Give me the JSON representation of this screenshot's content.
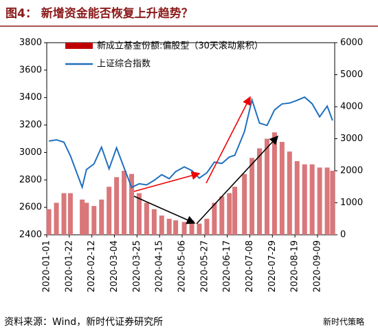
{
  "chart_data": {
    "type": "combo",
    "title": "图4：  新增资金能否恢复上升趋势？",
    "source": "资料来源：Wind，新时代证券研究所",
    "watermark": "新时代策略",
    "x": [
      "2020-01-03",
      "2020-01-10",
      "2020-01-17",
      "2020-01-23",
      "2020-02-03",
      "2020-02-07",
      "2020-02-14",
      "2020-02-21",
      "2020-02-28",
      "2020-03-06",
      "2020-03-13",
      "2020-03-20",
      "2020-03-27",
      "2020-04-03",
      "2020-04-10",
      "2020-04-17",
      "2020-04-24",
      "2020-04-30",
      "2020-05-08",
      "2020-05-15",
      "2020-05-22",
      "2020-05-29",
      "2020-06-05",
      "2020-06-12",
      "2020-06-19",
      "2020-06-24",
      "2020-07-03",
      "2020-07-10",
      "2020-07-17",
      "2020-07-24",
      "2020-07-31",
      "2020-08-07",
      "2020-08-14",
      "2020-08-21",
      "2020-08-28",
      "2020-09-04",
      "2020-09-11",
      "2020-09-18",
      "2020-09-23"
    ],
    "xlim": [
      "2020-01-01",
      "2020-09-25"
    ],
    "xticks": [
      "2020-01-01",
      "2020-01-22",
      "2020-02-12",
      "2020-03-04",
      "2020-03-25",
      "2020-04-15",
      "2020-05-06",
      "2020-05-27",
      "2020-06-17",
      "2020-07-08",
      "2020-07-29",
      "2020-08-19",
      "2020-09-09"
    ],
    "ylim": [
      2400,
      3800
    ],
    "yticks": [
      2400,
      2600,
      2800,
      3000,
      3200,
      3400,
      3600,
      3800
    ],
    "y2lim": [
      0,
      6000
    ],
    "y2ticks": [
      0,
      1000,
      2000,
      3000,
      4000,
      5000,
      6000
    ],
    "series": [
      {
        "name": "新成立基金份额:偏股型（30天滚动累积）",
        "type": "bar",
        "axis": "y2",
        "color": "#d9777a",
        "values": [
          800,
          1000,
          1300,
          1300,
          1100,
          1000,
          900,
          1100,
          1500,
          1800,
          2000,
          1900,
          1300,
          1000,
          800,
          600,
          500,
          450,
          400,
          450,
          350,
          500,
          1000,
          1200,
          1300,
          1500,
          1900,
          2400,
          2700,
          3000,
          3200,
          2900,
          2600,
          2300,
          2200,
          2200,
          2100,
          2100,
          2000
        ]
      },
      {
        "name": "上证综合指数",
        "type": "line",
        "axis": "y",
        "color": "#1f6fbf",
        "values": [
          3083,
          3092,
          3075,
          2976,
          2746,
          2875,
          2917,
          3039,
          2880,
          3034,
          2887,
          2745,
          2772,
          2764,
          2797,
          2838,
          2809,
          2860,
          2895,
          2868,
          2813,
          2852,
          2930,
          2920,
          2967,
          2979,
          3152,
          3383,
          3214,
          3197,
          3310,
          3354,
          3360,
          3380,
          3403,
          3355,
          3260,
          3338,
          3233
        ]
      }
    ]
  }
}
